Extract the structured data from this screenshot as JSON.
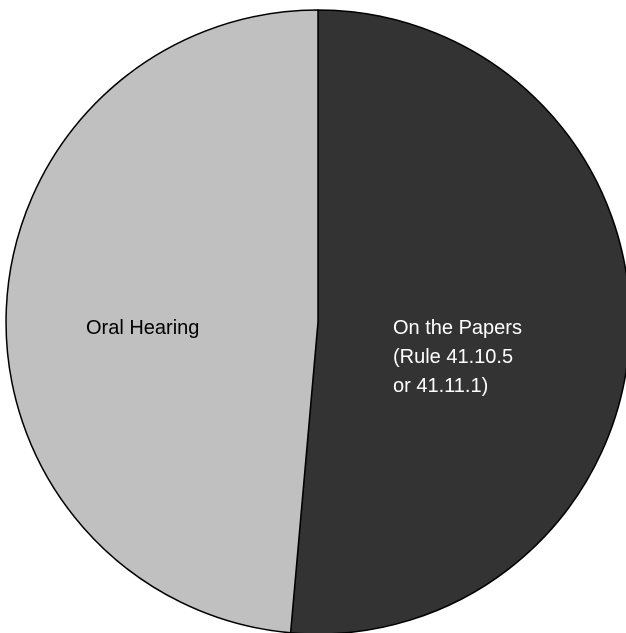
{
  "chart_data": {
    "type": "pie",
    "start_angle_deg": 0,
    "direction": "clockwise",
    "slices": [
      {
        "label_lines": [
          "On the Papers",
          "(Rule 41.10.5",
          "or 41.11.1)"
        ],
        "value": 51.4,
        "color": "#333333",
        "label_color": "#ffffff"
      },
      {
        "label_lines": [
          "Oral Hearing"
        ],
        "value": 48.6,
        "color": "#c0c0c0",
        "label_color": "#000000"
      }
    ],
    "edge_color": "#000000"
  }
}
